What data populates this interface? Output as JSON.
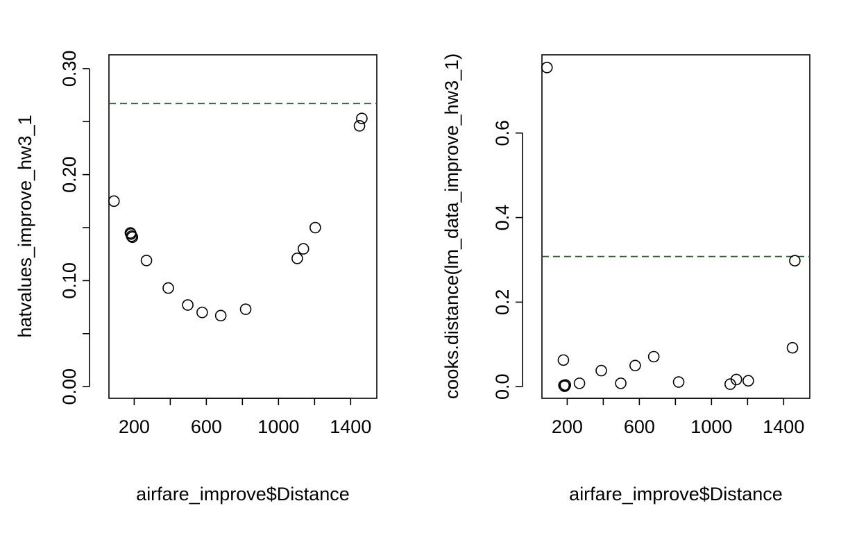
{
  "chart_data": [
    {
      "type": "scatter",
      "title": "",
      "xlabel": "airfare_improve$Distance",
      "ylabel": "hatvalues_improve_hw3_1",
      "xlim": [
        60,
        1545
      ],
      "ylim": [
        -0.011,
        0.313
      ],
      "x_ticks": [
        {
          "value": 200,
          "label": "200"
        },
        {
          "value": 400,
          "label": ""
        },
        {
          "value": 600,
          "label": "600"
        },
        {
          "value": 800,
          "label": ""
        },
        {
          "value": 1000,
          "label": "1000"
        },
        {
          "value": 1200,
          "label": ""
        },
        {
          "value": 1400,
          "label": "1400"
        }
      ],
      "y_ticks": [
        {
          "value": 0.0,
          "label": "0.00"
        },
        {
          "value": 0.05,
          "label": ""
        },
        {
          "value": 0.1,
          "label": "0.10"
        },
        {
          "value": 0.15,
          "label": ""
        },
        {
          "value": 0.2,
          "label": "0.20"
        },
        {
          "value": 0.25,
          "label": ""
        },
        {
          "value": 0.3,
          "label": "0.30"
        }
      ],
      "reference_line": {
        "y": 0.267,
        "color": "#1f5c1f",
        "style": "dashed"
      },
      "points": [
        {
          "x": 88,
          "y": 0.175
        },
        {
          "x": 179,
          "y": 0.145
        },
        {
          "x": 182,
          "y": 0.144
        },
        {
          "x": 186,
          "y": 0.142
        },
        {
          "x": 190,
          "y": 0.141
        },
        {
          "x": 268,
          "y": 0.119
        },
        {
          "x": 389,
          "y": 0.093
        },
        {
          "x": 497,
          "y": 0.077
        },
        {
          "x": 577,
          "y": 0.07
        },
        {
          "x": 680,
          "y": 0.067
        },
        {
          "x": 818,
          "y": 0.073
        },
        {
          "x": 1104,
          "y": 0.121
        },
        {
          "x": 1138,
          "y": 0.13
        },
        {
          "x": 1204,
          "y": 0.15
        },
        {
          "x": 1449,
          "y": 0.246
        },
        {
          "x": 1462,
          "y": 0.253
        }
      ]
    },
    {
      "type": "scatter",
      "title": "",
      "xlabel": "airfare_improve$Distance",
      "ylabel": "cooks.distance(lm_data_improve_hw3_1)",
      "xlim": [
        60,
        1545
      ],
      "ylim": [
        -0.0275,
        0.785
      ],
      "x_ticks": [
        {
          "value": 200,
          "label": "200"
        },
        {
          "value": 400,
          "label": ""
        },
        {
          "value": 600,
          "label": "600"
        },
        {
          "value": 800,
          "label": ""
        },
        {
          "value": 1000,
          "label": "1000"
        },
        {
          "value": 1200,
          "label": ""
        },
        {
          "value": 1400,
          "label": "1400"
        }
      ],
      "y_ticks": [
        {
          "value": 0.0,
          "label": "0.0"
        },
        {
          "value": 0.2,
          "label": "0.2"
        },
        {
          "value": 0.4,
          "label": "0.4"
        },
        {
          "value": 0.6,
          "label": "0.6"
        }
      ],
      "reference_line": {
        "y": 0.308,
        "color": "#1f5c1f",
        "style": "dashed"
      },
      "points": [
        {
          "x": 88,
          "y": 0.755
        },
        {
          "x": 179,
          "y": 0.063
        },
        {
          "x": 182,
          "y": 0.003
        },
        {
          "x": 186,
          "y": 0.001
        },
        {
          "x": 190,
          "y": 0.004
        },
        {
          "x": 268,
          "y": 0.008
        },
        {
          "x": 389,
          "y": 0.038
        },
        {
          "x": 497,
          "y": 0.008
        },
        {
          "x": 577,
          "y": 0.05
        },
        {
          "x": 680,
          "y": 0.071
        },
        {
          "x": 818,
          "y": 0.011
        },
        {
          "x": 1104,
          "y": 0.006
        },
        {
          "x": 1138,
          "y": 0.017
        },
        {
          "x": 1204,
          "y": 0.014
        },
        {
          "x": 1449,
          "y": 0.092
        },
        {
          "x": 1462,
          "y": 0.298
        }
      ]
    }
  ]
}
